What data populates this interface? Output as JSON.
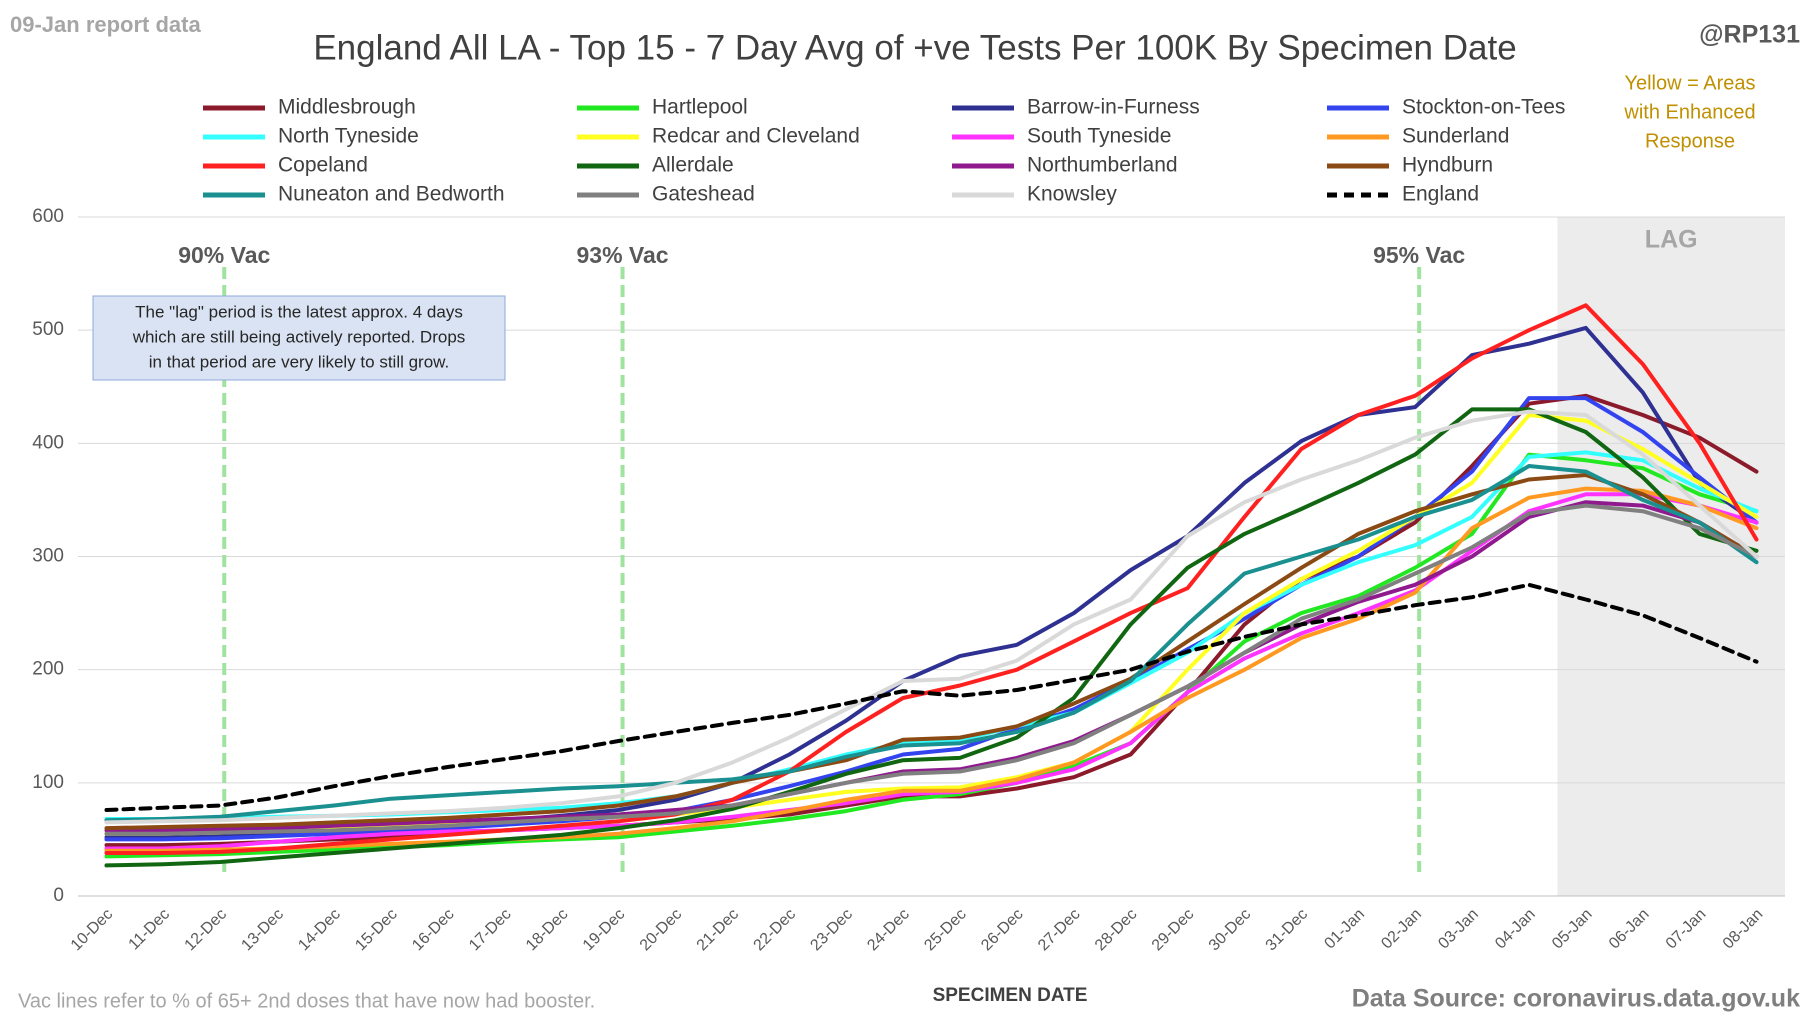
{
  "chart_data": {
    "type": "line",
    "title": "England All LA - Top 15 - 7 Day Avg of +ve Tests Per 100K By Specimen Date",
    "report_note": "09-Jan report data",
    "handle": "@RP131",
    "enhanced_note": [
      "Yellow = Areas",
      "with Enhanced",
      "Response"
    ],
    "lag_note": [
      "The \"lag\" period is the latest approx. 4 days",
      "which are still being actively reported.  Drops",
      "in that period are very likely to still grow."
    ],
    "x_label": "SPECIMEN DATE",
    "footer_left": "Vac lines refer to % of 65+ 2nd doses that have now had booster.",
    "footer_right": "Data Source: coronavirus.data.gov.uk",
    "vac_lines": [
      {
        "category": "12-Dec",
        "label": "90% Vac"
      },
      {
        "category": "19-Dec",
        "label": "93% Vac"
      },
      {
        "category": "02-Jan",
        "label": "95% Vac"
      }
    ],
    "lag": {
      "start": "05-Jan",
      "label": "LAG"
    },
    "categories": [
      "10-Dec",
      "11-Dec",
      "12-Dec",
      "13-Dec",
      "14-Dec",
      "15-Dec",
      "16-Dec",
      "17-Dec",
      "18-Dec",
      "19-Dec",
      "20-Dec",
      "21-Dec",
      "22-Dec",
      "23-Dec",
      "24-Dec",
      "25-Dec",
      "26-Dec",
      "27-Dec",
      "28-Dec",
      "29-Dec",
      "30-Dec",
      "31-Dec",
      "01-Jan",
      "02-Jan",
      "03-Jan",
      "04-Jan",
      "05-Jan",
      "06-Jan",
      "07-Jan",
      "08-Jan"
    ],
    "ylim": [
      0,
      600
    ],
    "yticks": [
      0,
      100,
      200,
      300,
      400,
      500,
      600
    ],
    "grid": true,
    "series": [
      {
        "name": "Middlesbrough",
        "color": "#8b1a2b",
        "values": [
          45,
          45,
          46,
          48,
          50,
          52,
          55,
          58,
          60,
          62,
          65,
          68,
          72,
          80,
          88,
          88,
          95,
          105,
          125,
          180,
          240,
          280,
          300,
          330,
          380,
          435,
          442,
          425,
          405,
          375
        ]
      },
      {
        "name": "Hartlepool",
        "color": "#22e822",
        "values": [
          35,
          36,
          37,
          39,
          41,
          43,
          45,
          48,
          50,
          52,
          57,
          62,
          68,
          75,
          85,
          90,
          100,
          115,
          135,
          180,
          225,
          250,
          265,
          290,
          320,
          390,
          385,
          378,
          355,
          340
        ]
      },
      {
        "name": "Barrow-in-Furness",
        "color": "#2e3192",
        "values": [
          52,
          52,
          53,
          55,
          58,
          61,
          64,
          67,
          71,
          76,
          85,
          100,
          125,
          155,
          190,
          212,
          222,
          250,
          288,
          318,
          365,
          402,
          425,
          432,
          478,
          488,
          502,
          445,
          365,
          330
        ]
      },
      {
        "name": "Stockton-on-Tees",
        "color": "#3344ee",
        "values": [
          50,
          50,
          51,
          53,
          55,
          57,
          60,
          63,
          66,
          70,
          75,
          85,
          97,
          110,
          125,
          130,
          148,
          165,
          190,
          218,
          245,
          275,
          300,
          335,
          375,
          440,
          440,
          410,
          370,
          330
        ]
      },
      {
        "name": "North Tyneside",
        "color": "#33ffff",
        "values": [
          68,
          68,
          69,
          70,
          71,
          72,
          74,
          76,
          78,
          82,
          88,
          100,
          112,
          125,
          135,
          138,
          150,
          162,
          188,
          215,
          250,
          275,
          295,
          310,
          335,
          388,
          392,
          385,
          360,
          340
        ]
      },
      {
        "name": "Redcar and Cleveland",
        "color": "#ffff22",
        "values": [
          55,
          55,
          56,
          58,
          60,
          62,
          64,
          66,
          68,
          70,
          72,
          78,
          85,
          92,
          95,
          96,
          105,
          118,
          145,
          200,
          250,
          280,
          305,
          335,
          365,
          425,
          420,
          395,
          365,
          335
        ]
      },
      {
        "name": "South Tyneside",
        "color": "#ff33ff",
        "values": [
          42,
          42,
          44,
          48,
          52,
          55,
          57,
          58,
          60,
          62,
          65,
          70,
          76,
          82,
          90,
          92,
          100,
          112,
          135,
          180,
          210,
          232,
          250,
          270,
          305,
          340,
          355,
          355,
          345,
          330
        ]
      },
      {
        "name": "Sunderland",
        "color": "#ff9922",
        "values": [
          40,
          40,
          41,
          42,
          44,
          46,
          48,
          50,
          52,
          55,
          60,
          66,
          75,
          85,
          93,
          93,
          103,
          118,
          145,
          175,
          200,
          228,
          245,
          268,
          325,
          352,
          360,
          358,
          345,
          325
        ]
      },
      {
        "name": "Copeland",
        "color": "#ff2020",
        "values": [
          38,
          38,
          39,
          42,
          46,
          50,
          54,
          58,
          62,
          66,
          72,
          85,
          110,
          145,
          175,
          186,
          200,
          225,
          250,
          272,
          335,
          395,
          425,
          442,
          475,
          500,
          522,
          470,
          400,
          315
        ]
      },
      {
        "name": "Allerdale",
        "color": "#116611",
        "values": [
          27,
          28,
          30,
          34,
          38,
          42,
          46,
          50,
          54,
          60,
          67,
          77,
          92,
          108,
          120,
          122,
          140,
          175,
          240,
          290,
          320,
          342,
          365,
          390,
          430,
          430,
          410,
          370,
          320,
          305
        ]
      },
      {
        "name": "Northumberland",
        "color": "#8e1a8e",
        "values": [
          58,
          58,
          59,
          60,
          62,
          64,
          66,
          68,
          70,
          72,
          76,
          80,
          90,
          100,
          110,
          112,
          122,
          137,
          160,
          185,
          215,
          240,
          260,
          275,
          300,
          335,
          348,
          345,
          330,
          300
        ]
      },
      {
        "name": "Hyndburn",
        "color": "#8b4a14",
        "values": [
          60,
          61,
          62,
          63,
          65,
          67,
          69,
          72,
          75,
          80,
          88,
          100,
          110,
          120,
          138,
          140,
          150,
          170,
          192,
          225,
          258,
          290,
          320,
          340,
          355,
          368,
          372,
          355,
          330,
          300
        ]
      },
      {
        "name": "Nuneaton and Bedworth",
        "color": "#1a9090",
        "values": [
          67,
          68,
          70,
          75,
          80,
          86,
          89,
          92,
          95,
          97,
          100,
          103,
          110,
          123,
          133,
          135,
          145,
          162,
          190,
          240,
          285,
          300,
          315,
          335,
          350,
          380,
          375,
          350,
          330,
          295
        ]
      },
      {
        "name": "Gateshead",
        "color": "#808080",
        "values": [
          55,
          55,
          56,
          57,
          58,
          60,
          62,
          65,
          68,
          70,
          73,
          80,
          90,
          100,
          108,
          110,
          120,
          135,
          160,
          185,
          215,
          245,
          262,
          285,
          308,
          338,
          345,
          340,
          325,
          300
        ]
      },
      {
        "name": "Knowsley",
        "color": "#d9d9d9",
        "values": [
          65,
          66,
          67,
          69,
          71,
          73,
          75,
          78,
          82,
          88,
          100,
          118,
          140,
          165,
          190,
          192,
          208,
          240,
          262,
          318,
          348,
          368,
          385,
          405,
          420,
          428,
          425,
          390,
          345,
          300
        ]
      },
      {
        "name": "England",
        "color": "#000000",
        "dashed": true,
        "values": [
          76,
          78,
          80,
          87,
          97,
          106,
          114,
          121,
          128,
          137,
          145,
          153,
          160,
          170,
          181,
          177,
          182,
          191,
          200,
          216,
          229,
          240,
          248,
          257,
          264,
          275,
          262,
          248,
          228,
          207
        ]
      }
    ]
  }
}
